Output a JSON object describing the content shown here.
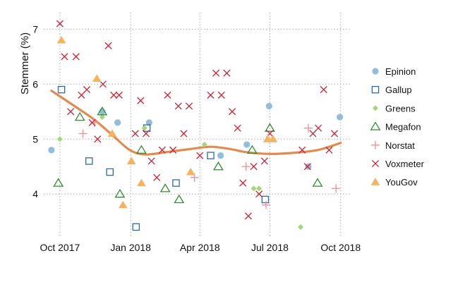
{
  "chart_data": {
    "type": "scatter",
    "title": "",
    "xlabel": "",
    "ylabel": "Stemmer (%)",
    "xlim": [
      "2017-09-10",
      "2018-10-15"
    ],
    "ylim": [
      3.22,
      7.3
    ],
    "y_ticks": [
      4,
      5,
      6,
      7
    ],
    "x_ticks": [
      {
        "date": "2017-10-01",
        "label": "Oct 2017"
      },
      {
        "date": "2018-01-01",
        "label": "Jan 2018"
      },
      {
        "date": "2018-04-01",
        "label": "Apr 2018"
      },
      {
        "date": "2018-07-01",
        "label": "Jul 2018"
      },
      {
        "date": "2018-10-01",
        "label": "Oct 2018"
      }
    ],
    "grid": true,
    "legend_position": "right",
    "series": [
      {
        "name": "Epinion",
        "marker": "circle",
        "color": "#92bedd",
        "points": [
          [
            "2017-09-20",
            4.8
          ],
          [
            "2017-11-25",
            5.5
          ],
          [
            "2017-12-15",
            5.3
          ],
          [
            "2018-01-25",
            5.3
          ],
          [
            "2018-04-28",
            4.7
          ],
          [
            "2018-06-01",
            4.9
          ],
          [
            "2018-06-30",
            5.6
          ],
          [
            "2018-08-20",
            4.5
          ],
          [
            "2018-09-30",
            5.4
          ]
        ]
      },
      {
        "name": "Gallup",
        "marker": "square",
        "color": "#2d6ba6",
        "points": [
          [
            "2017-10-03",
            5.9
          ],
          [
            "2017-11-08",
            4.6
          ],
          [
            "2017-12-05",
            4.4
          ],
          [
            "2018-01-08",
            3.4
          ],
          [
            "2018-01-22",
            5.2
          ],
          [
            "2018-03-01",
            4.2
          ],
          [
            "2018-04-15",
            4.7
          ],
          [
            "2018-06-25",
            3.9
          ]
        ]
      },
      {
        "name": "Greens",
        "marker": "diamond",
        "color": "#a1d774",
        "points": [
          [
            "2017-10-01",
            5.0
          ],
          [
            "2017-11-25",
            5.4
          ],
          [
            "2018-01-19",
            5.2
          ],
          [
            "2018-04-07",
            4.9
          ],
          [
            "2018-06-10",
            4.1
          ],
          [
            "2018-06-17",
            4.1
          ],
          [
            "2018-08-10",
            3.4
          ]
        ]
      },
      {
        "name": "Megafon",
        "marker": "triangle",
        "color": "#2f8e2f",
        "points": [
          [
            "2017-09-29",
            4.2
          ],
          [
            "2017-10-27",
            5.4
          ],
          [
            "2017-11-25",
            5.5
          ],
          [
            "2017-12-18",
            4.0
          ],
          [
            "2018-01-15",
            4.8
          ],
          [
            "2018-02-15",
            4.1
          ],
          [
            "2018-03-05",
            3.9
          ],
          [
            "2018-04-25",
            4.5
          ],
          [
            "2018-06-08",
            4.8
          ],
          [
            "2018-07-01",
            5.2
          ],
          [
            "2018-09-01",
            4.2
          ]
        ]
      },
      {
        "name": "Norstat",
        "marker": "plus",
        "color": "#f48d97",
        "points": [
          [
            "2017-10-31",
            5.1
          ],
          [
            "2017-11-15",
            5.3
          ],
          [
            "2018-03-25",
            4.3
          ],
          [
            "2018-05-31",
            4.5
          ],
          [
            "2018-06-26",
            3.8
          ],
          [
            "2018-08-20",
            5.2
          ],
          [
            "2018-09-25",
            4.1
          ]
        ]
      },
      {
        "name": "Voxmeter",
        "marker": "x",
        "color": "#d51e33",
        "points": [
          [
            "2017-10-01",
            7.1
          ],
          [
            "2017-10-07",
            6.5
          ],
          [
            "2017-10-15",
            5.5
          ],
          [
            "2017-10-22",
            6.5
          ],
          [
            "2017-10-29",
            5.8
          ],
          [
            "2017-11-05",
            5.9
          ],
          [
            "2017-11-12",
            5.3
          ],
          [
            "2017-11-19",
            5.0
          ],
          [
            "2017-11-26",
            6.0
          ],
          [
            "2017-12-03",
            6.7
          ],
          [
            "2017-12-10",
            5.8
          ],
          [
            "2017-12-17",
            5.8
          ],
          [
            "2018-01-07",
            5.1
          ],
          [
            "2018-01-14",
            5.7
          ],
          [
            "2018-01-21",
            5.1
          ],
          [
            "2018-01-28",
            4.6
          ],
          [
            "2018-02-04",
            4.3
          ],
          [
            "2018-02-11",
            4.8
          ],
          [
            "2018-02-18",
            5.8
          ],
          [
            "2018-02-25",
            4.8
          ],
          [
            "2018-03-04",
            5.6
          ],
          [
            "2018-03-11",
            5.1
          ],
          [
            "2018-03-18",
            5.6
          ],
          [
            "2018-04-01",
            4.7
          ],
          [
            "2018-04-15",
            5.8
          ],
          [
            "2018-04-22",
            6.2
          ],
          [
            "2018-04-29",
            5.8
          ],
          [
            "2018-05-06",
            6.2
          ],
          [
            "2018-05-13",
            5.5
          ],
          [
            "2018-05-20",
            5.2
          ],
          [
            "2018-05-27",
            4.2
          ],
          [
            "2018-06-03",
            3.6
          ],
          [
            "2018-06-10",
            4.5
          ],
          [
            "2018-06-17",
            4.0
          ],
          [
            "2018-06-24",
            4.6
          ],
          [
            "2018-07-01",
            5.1
          ],
          [
            "2018-08-12",
            4.8
          ],
          [
            "2018-08-19",
            4.5
          ],
          [
            "2018-08-26",
            5.1
          ],
          [
            "2018-09-02",
            5.2
          ],
          [
            "2018-09-09",
            5.9
          ],
          [
            "2018-09-16",
            4.8
          ],
          [
            "2018-09-23",
            5.1
          ]
        ]
      },
      {
        "name": "YouGov",
        "marker": "triangle-filled",
        "color": "#f7b25b",
        "points": [
          [
            "2017-10-03",
            6.8
          ],
          [
            "2017-11-18",
            6.1
          ],
          [
            "2017-12-08",
            5.1
          ],
          [
            "2017-12-22",
            3.8
          ],
          [
            "2018-01-02",
            4.6
          ],
          [
            "2018-01-15",
            4.2
          ],
          [
            "2018-03-20",
            4.4
          ],
          [
            "2018-06-28",
            5.0
          ],
          [
            "2018-07-05",
            5.0
          ]
        ]
      }
    ],
    "trend": {
      "name": "trend",
      "color": "#e68a4c",
      "points": [
        [
          "2017-09-20",
          5.88
        ],
        [
          "2017-10-20",
          5.6
        ],
        [
          "2017-11-15",
          5.35
        ],
        [
          "2017-12-10",
          5.05
        ],
        [
          "2017-12-31",
          4.8
        ],
        [
          "2018-01-20",
          4.72
        ],
        [
          "2018-02-20",
          4.77
        ],
        [
          "2018-03-20",
          4.82
        ],
        [
          "2018-04-15",
          4.86
        ],
        [
          "2018-05-10",
          4.82
        ],
        [
          "2018-06-01",
          4.76
        ],
        [
          "2018-07-01",
          4.73
        ],
        [
          "2018-08-01",
          4.75
        ],
        [
          "2018-09-01",
          4.8
        ],
        [
          "2018-10-01",
          4.93
        ]
      ]
    }
  }
}
